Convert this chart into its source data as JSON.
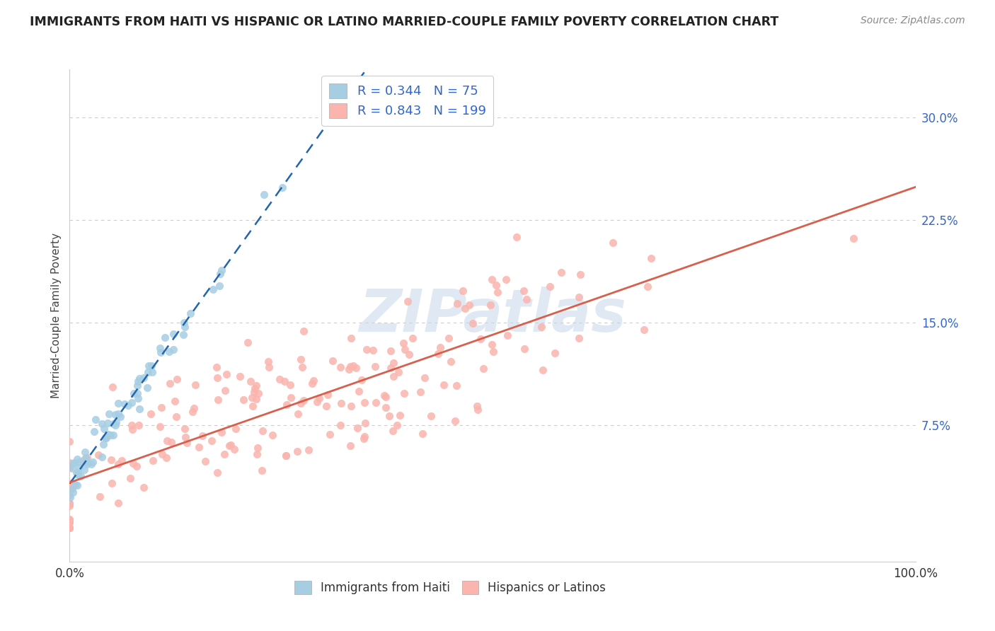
{
  "title": "IMMIGRANTS FROM HAITI VS HISPANIC OR LATINO MARRIED-COUPLE FAMILY POVERTY CORRELATION CHART",
  "source": "Source: ZipAtlas.com",
  "ylabel": "Married-Couple Family Poverty",
  "xlim": [
    0,
    1.0
  ],
  "ylim": [
    -0.025,
    0.335
  ],
  "x_tick_labels": [
    "0.0%",
    "100.0%"
  ],
  "y_tick_labels": [
    "7.5%",
    "15.0%",
    "22.5%",
    "30.0%"
  ],
  "y_tick_values": [
    0.075,
    0.15,
    0.225,
    0.3
  ],
  "haiti_color": "#a6cee3",
  "hispanic_color": "#fbb4ae",
  "haiti_R": 0.344,
  "haiti_N": 75,
  "hispanic_R": 0.843,
  "hispanic_N": 199,
  "watermark": "ZIPatlas",
  "grid_color": "#cccccc",
  "legend_text_color": "#3366cc",
  "haiti_line_color": "#2166ac",
  "hispanic_line_color": "#d6604d",
  "background_color": "#ffffff",
  "haiti_seed": 12,
  "hisp_seed": 7
}
